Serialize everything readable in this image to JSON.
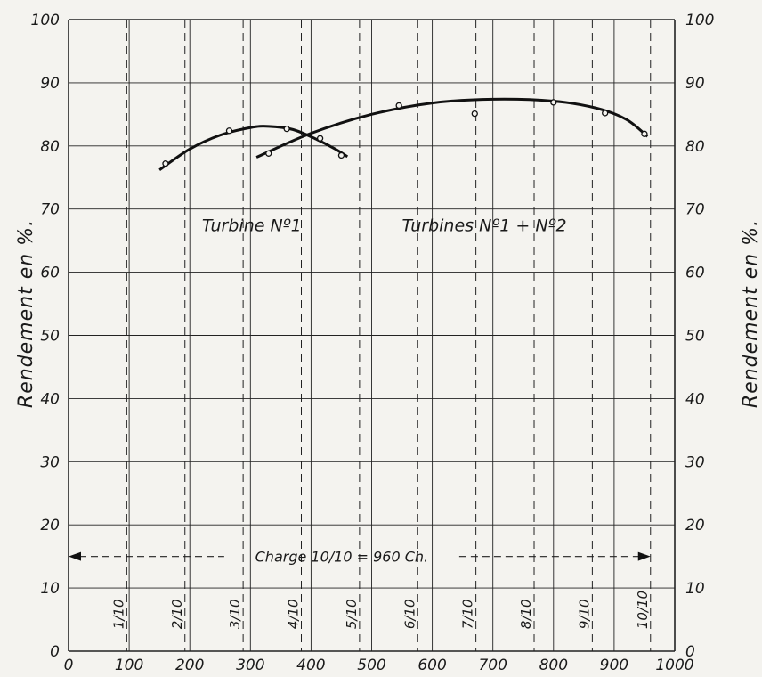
{
  "chart_data": {
    "type": "line",
    "xlim": [
      0,
      1000
    ],
    "ylim": [
      0,
      100
    ],
    "grid": true,
    "x_ticks": [
      "0",
      "100",
      "200",
      "300",
      "400",
      "500",
      "600",
      "700",
      "800",
      "900",
      "1000"
    ],
    "y_ticks_left": [
      "0",
      "10",
      "20",
      "30",
      "40",
      "50",
      "60",
      "70",
      "80",
      "90",
      "100"
    ],
    "y_ticks_right": [
      "0",
      "10",
      "20",
      "30",
      "40",
      "50",
      "60",
      "70",
      "80",
      "90",
      "100"
    ],
    "ylabel_left": "Rendement en %.",
    "ylabel_right": "Rendement en %.",
    "load_fractions": [
      {
        "label": "1/10",
        "x": 96
      },
      {
        "label": "2/10",
        "x": 192
      },
      {
        "label": "3/10",
        "x": 288
      },
      {
        "label": "4/10",
        "x": 384
      },
      {
        "label": "5/10",
        "x": 480
      },
      {
        "label": "6/10",
        "x": 576
      },
      {
        "label": "7/10",
        "x": 672
      },
      {
        "label": "8/10",
        "x": 768
      },
      {
        "label": "9/10",
        "x": 864
      },
      {
        "label": "10/10",
        "x": 960
      }
    ],
    "annotation": {
      "text": "Charge 10/10 = 960 Ch.",
      "y": 15,
      "x_from": 0,
      "x_to": 960
    },
    "series": [
      {
        "name": "Turbine Nº1",
        "label_position": {
          "x": 220,
          "y": 66.5
        },
        "curve": [
          [
            150,
            76.2
          ],
          [
            200,
            79.5
          ],
          [
            250,
            81.7
          ],
          [
            300,
            82.9
          ],
          [
            330,
            83.1
          ],
          [
            370,
            82.6
          ],
          [
            410,
            81.0
          ],
          [
            440,
            79.5
          ],
          [
            460,
            78.3
          ]
        ],
        "points": [
          [
            160,
            77.2
          ],
          [
            265,
            82.4
          ],
          [
            360,
            82.7
          ],
          [
            415,
            81.2
          ],
          [
            450,
            78.5
          ]
        ]
      },
      {
        "name": "Turbines Nº1 + Nº2",
        "label_position": {
          "x": 550,
          "y": 66.5
        },
        "curve": [
          [
            310,
            78.2
          ],
          [
            400,
            82.0
          ],
          [
            500,
            85.0
          ],
          [
            600,
            86.8
          ],
          [
            700,
            87.4
          ],
          [
            800,
            87.1
          ],
          [
            870,
            86.0
          ],
          [
            920,
            84.2
          ],
          [
            955,
            81.5
          ]
        ],
        "points": [
          [
            330,
            78.8
          ],
          [
            545,
            86.4
          ],
          [
            670,
            85.1
          ],
          [
            800,
            86.9
          ],
          [
            885,
            85.2
          ],
          [
            950,
            81.9
          ]
        ]
      }
    ]
  }
}
